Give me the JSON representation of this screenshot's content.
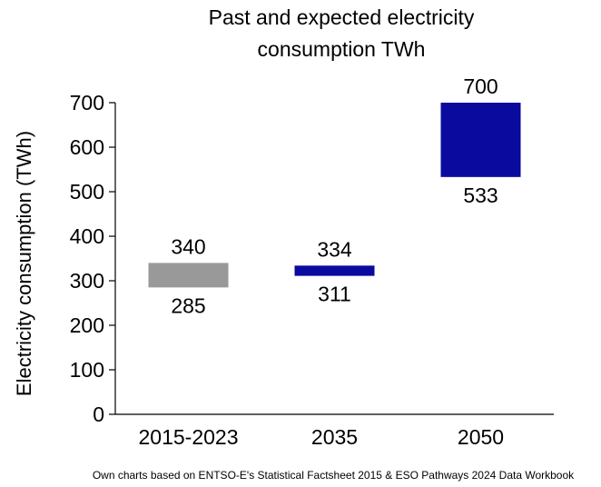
{
  "chart_data": {
    "type": "floating-bar",
    "title_line1": "Past and expected electricity",
    "title_line2": "consumption TWh",
    "ylabel": "Electricity consumption (TWh)",
    "ylim": [
      0,
      700
    ],
    "yticks": [
      0,
      100,
      200,
      300,
      400,
      500,
      600,
      700
    ],
    "grid": false,
    "categories": [
      "2015-2023",
      "2035",
      "2050"
    ],
    "ranges": [
      {
        "category": "2015-2023",
        "low": 285,
        "high": 340,
        "color": "#999999"
      },
      {
        "category": "2035",
        "low": 311,
        "high": 334,
        "color": "#0a0a9e"
      },
      {
        "category": "2050",
        "low": 533,
        "high": 700,
        "color": "#0a0a9e"
      }
    ]
  },
  "source": "Own charts based on ENTSO-E's Statistical Factsheet 2015 & ESO Pathways 2024 Data Workbook"
}
